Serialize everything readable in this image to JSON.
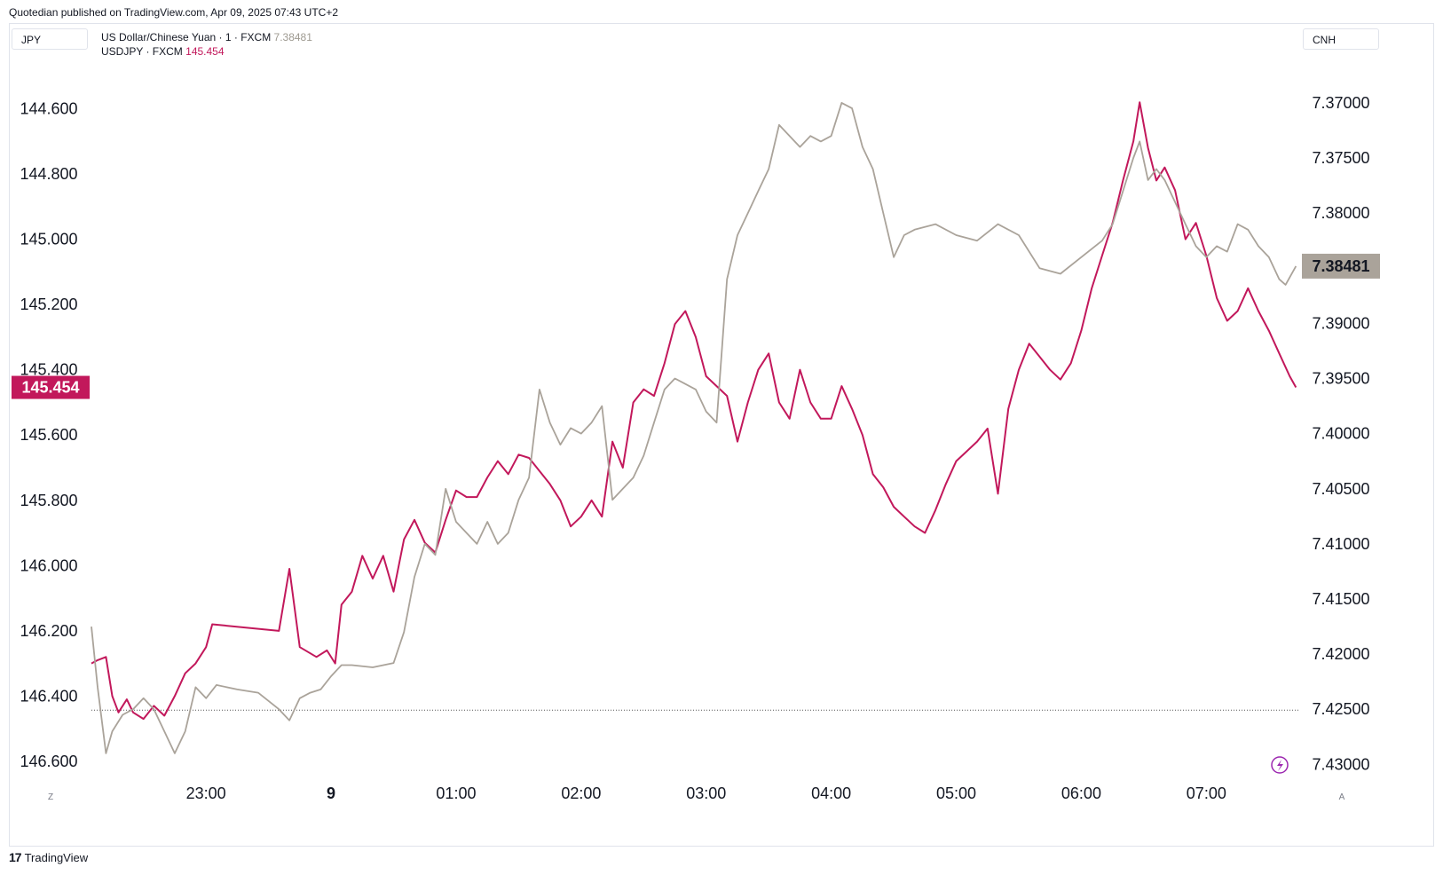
{
  "header": {
    "publisher_line": "Quotedian published on TradingView.com, Apr 09, 2025 07:43 UTC+2"
  },
  "left_unit": "JPY",
  "right_unit": "CNH",
  "legend": {
    "cnh": {
      "name": "US Dollar/Chinese Yuan · 1 · FXCM",
      "value": "7.38481"
    },
    "jpy": {
      "name": "USDJPY · FXCM",
      "value": "145.454"
    }
  },
  "footer": {
    "brand": "TradingView"
  },
  "corner": {
    "left": "Z",
    "right": "A"
  },
  "colors": {
    "jpy": "#c2185b",
    "cnh": "#aaa39a",
    "grid": "#f0f3fa",
    "text": "#131722"
  },
  "chart_data": {
    "type": "line",
    "x_ticks": [
      "23:00",
      "9",
      "01:00",
      "02:00",
      "03:00",
      "04:00",
      "05:00",
      "06:00",
      "07:00"
    ],
    "x_tick_times": [
      "2025-04-08 23:00",
      "2025-04-09 00:00",
      "2025-04-09 01:00",
      "2025-04-09 02:00",
      "2025-04-09 03:00",
      "2025-04-09 04:00",
      "2025-04-09 05:00",
      "2025-04-09 06:00",
      "2025-04-09 07:00"
    ],
    "x_range": [
      "2025-04-08 22:05",
      "2025-04-09 07:45"
    ],
    "left_axis": {
      "label": "JPY",
      "inverted": true,
      "range": [
        144.43,
        146.66
      ],
      "ticks": [
        "144.600",
        "144.800",
        "145.000",
        "145.200",
        "145.400",
        "145.600",
        "145.800",
        "146.000",
        "146.200",
        "146.400",
        "146.600"
      ],
      "tick_values": [
        144.6,
        144.8,
        145.0,
        145.2,
        145.4,
        145.6,
        145.8,
        146.0,
        146.2,
        146.4,
        146.6
      ],
      "last_value": 145.454,
      "last_value_label": "145.454"
    },
    "right_axis": {
      "label": "CNH",
      "inverted": true,
      "range": [
        7.3655,
        7.4315
      ],
      "ticks": [
        "7.37000",
        "7.37500",
        "7.38000",
        "7.38500",
        "7.39000",
        "7.39500",
        "7.40000",
        "7.40500",
        "7.41000",
        "7.41500",
        "7.42000",
        "7.42500",
        "7.43000"
      ],
      "tick_values": [
        7.37,
        7.375,
        7.38,
        7.385,
        7.39,
        7.395,
        7.4,
        7.405,
        7.41,
        7.415,
        7.42,
        7.425,
        7.43
      ],
      "last_value": 7.38481,
      "last_value_label": "7.38481",
      "reference_line": 7.42508
    },
    "series": [
      {
        "name": "USDJPY · FXCM",
        "axis": "left",
        "color": "#c2185b",
        "points": [
          [
            "2025-04-08 22:05",
            146.3
          ],
          [
            "2025-04-08 22:08",
            146.29
          ],
          [
            "2025-04-08 22:12",
            146.28
          ],
          [
            "2025-04-08 22:15",
            146.4
          ],
          [
            "2025-04-08 22:18",
            146.45
          ],
          [
            "2025-04-08 22:22",
            146.41
          ],
          [
            "2025-04-08 22:25",
            146.45
          ],
          [
            "2025-04-08 22:30",
            146.47
          ],
          [
            "2025-04-08 22:35",
            146.43
          ],
          [
            "2025-04-08 22:40",
            146.46
          ],
          [
            "2025-04-08 22:45",
            146.4
          ],
          [
            "2025-04-08 22:50",
            146.33
          ],
          [
            "2025-04-08 22:55",
            146.3
          ],
          [
            "2025-04-08 23:00",
            146.25
          ],
          [
            "2025-04-08 23:03",
            146.18
          ],
          [
            "2025-04-08 23:35",
            146.2
          ],
          [
            "2025-04-08 23:40",
            146.01
          ],
          [
            "2025-04-08 23:45",
            146.25
          ],
          [
            "2025-04-08 23:53",
            146.28
          ],
          [
            "2025-04-08 23:58",
            146.26
          ],
          [
            "2025-04-09 00:02",
            146.3
          ],
          [
            "2025-04-09 00:05",
            146.12
          ],
          [
            "2025-04-09 00:10",
            146.08
          ],
          [
            "2025-04-09 00:15",
            145.97
          ],
          [
            "2025-04-09 00:20",
            146.04
          ],
          [
            "2025-04-09 00:25",
            145.97
          ],
          [
            "2025-04-09 00:30",
            146.08
          ],
          [
            "2025-04-09 00:35",
            145.92
          ],
          [
            "2025-04-09 00:40",
            145.86
          ],
          [
            "2025-04-09 00:45",
            145.93
          ],
          [
            "2025-04-09 00:50",
            145.96
          ],
          [
            "2025-04-09 00:55",
            145.86
          ],
          [
            "2025-04-09 01:00",
            145.77
          ],
          [
            "2025-04-09 01:05",
            145.79
          ],
          [
            "2025-04-09 01:10",
            145.79
          ],
          [
            "2025-04-09 01:15",
            145.73
          ],
          [
            "2025-04-09 01:20",
            145.68
          ],
          [
            "2025-04-09 01:25",
            145.72
          ],
          [
            "2025-04-09 01:30",
            145.66
          ],
          [
            "2025-04-09 01:35",
            145.67
          ],
          [
            "2025-04-09 01:40",
            145.71
          ],
          [
            "2025-04-09 01:45",
            145.75
          ],
          [
            "2025-04-09 01:50",
            145.8
          ],
          [
            "2025-04-09 01:55",
            145.88
          ],
          [
            "2025-04-09 02:00",
            145.85
          ],
          [
            "2025-04-09 02:05",
            145.8
          ],
          [
            "2025-04-09 02:10",
            145.85
          ],
          [
            "2025-04-09 02:15",
            145.62
          ],
          [
            "2025-04-09 02:20",
            145.7
          ],
          [
            "2025-04-09 02:25",
            145.5
          ],
          [
            "2025-04-09 02:30",
            145.46
          ],
          [
            "2025-04-09 02:35",
            145.48
          ],
          [
            "2025-04-09 02:40",
            145.38
          ],
          [
            "2025-04-09 02:45",
            145.26
          ],
          [
            "2025-04-09 02:50",
            145.22
          ],
          [
            "2025-04-09 02:55",
            145.3
          ],
          [
            "2025-04-09 03:00",
            145.42
          ],
          [
            "2025-04-09 03:05",
            145.45
          ],
          [
            "2025-04-09 03:10",
            145.48
          ],
          [
            "2025-04-09 03:15",
            145.62
          ],
          [
            "2025-04-09 03:20",
            145.5
          ],
          [
            "2025-04-09 03:25",
            145.4
          ],
          [
            "2025-04-09 03:30",
            145.35
          ],
          [
            "2025-04-09 03:35",
            145.5
          ],
          [
            "2025-04-09 03:40",
            145.55
          ],
          [
            "2025-04-09 03:45",
            145.4
          ],
          [
            "2025-04-09 03:50",
            145.5
          ],
          [
            "2025-04-09 03:55",
            145.55
          ],
          [
            "2025-04-09 04:00",
            145.55
          ],
          [
            "2025-04-09 04:05",
            145.45
          ],
          [
            "2025-04-09 04:10",
            145.52
          ],
          [
            "2025-04-09 04:15",
            145.6
          ],
          [
            "2025-04-09 04:20",
            145.72
          ],
          [
            "2025-04-09 04:25",
            145.76
          ],
          [
            "2025-04-09 04:30",
            145.82
          ],
          [
            "2025-04-09 04:35",
            145.85
          ],
          [
            "2025-04-09 04:40",
            145.88
          ],
          [
            "2025-04-09 04:45",
            145.9
          ],
          [
            "2025-04-09 04:50",
            145.83
          ],
          [
            "2025-04-09 04:55",
            145.75
          ],
          [
            "2025-04-09 05:00",
            145.68
          ],
          [
            "2025-04-09 05:05",
            145.65
          ],
          [
            "2025-04-09 05:10",
            145.62
          ],
          [
            "2025-04-09 05:15",
            145.58
          ],
          [
            "2025-04-09 05:20",
            145.78
          ],
          [
            "2025-04-09 05:25",
            145.52
          ],
          [
            "2025-04-09 05:30",
            145.4
          ],
          [
            "2025-04-09 05:35",
            145.32
          ],
          [
            "2025-04-09 05:40",
            145.36
          ],
          [
            "2025-04-09 05:45",
            145.4
          ],
          [
            "2025-04-09 05:50",
            145.43
          ],
          [
            "2025-04-09 05:55",
            145.38
          ],
          [
            "2025-04-09 06:00",
            145.28
          ],
          [
            "2025-04-09 06:05",
            145.15
          ],
          [
            "2025-04-09 06:10",
            145.05
          ],
          [
            "2025-04-09 06:15",
            144.95
          ],
          [
            "2025-04-09 06:20",
            144.82
          ],
          [
            "2025-04-09 06:25",
            144.7
          ],
          [
            "2025-04-09 06:28",
            144.58
          ],
          [
            "2025-04-09 06:32",
            144.72
          ],
          [
            "2025-04-09 06:36",
            144.82
          ],
          [
            "2025-04-09 06:40",
            144.78
          ],
          [
            "2025-04-09 06:45",
            144.85
          ],
          [
            "2025-04-09 06:50",
            145.0
          ],
          [
            "2025-04-09 06:55",
            144.95
          ],
          [
            "2025-04-09 07:00",
            145.05
          ],
          [
            "2025-04-09 07:05",
            145.18
          ],
          [
            "2025-04-09 07:10",
            145.25
          ],
          [
            "2025-04-09 07:15",
            145.22
          ],
          [
            "2025-04-09 07:20",
            145.15
          ],
          [
            "2025-04-09 07:25",
            145.22
          ],
          [
            "2025-04-09 07:30",
            145.28
          ],
          [
            "2025-04-09 07:35",
            145.35
          ],
          [
            "2025-04-09 07:40",
            145.42
          ],
          [
            "2025-04-09 07:43",
            145.454
          ]
        ]
      },
      {
        "name": "US Dollar/Chinese Yuan · 1 · FXCM",
        "axis": "right",
        "color": "#aaa39a",
        "points": [
          [
            "2025-04-08 22:05",
            7.4175
          ],
          [
            "2025-04-08 22:08",
            7.423
          ],
          [
            "2025-04-08 22:12",
            7.429
          ],
          [
            "2025-04-08 22:15",
            7.427
          ],
          [
            "2025-04-08 22:20",
            7.4255
          ],
          [
            "2025-04-08 22:25",
            7.425
          ],
          [
            "2025-04-08 22:30",
            7.424
          ],
          [
            "2025-04-08 22:35",
            7.425
          ],
          [
            "2025-04-08 22:40",
            7.427
          ],
          [
            "2025-04-08 22:45",
            7.429
          ],
          [
            "2025-04-08 22:50",
            7.427
          ],
          [
            "2025-04-08 22:55",
            7.423
          ],
          [
            "2025-04-08 23:00",
            7.424
          ],
          [
            "2025-04-08 23:05",
            7.4228
          ],
          [
            "2025-04-08 23:15",
            7.4232
          ],
          [
            "2025-04-08 23:25",
            7.4235
          ],
          [
            "2025-04-08 23:35",
            7.425
          ],
          [
            "2025-04-08 23:40",
            7.426
          ],
          [
            "2025-04-08 23:45",
            7.424
          ],
          [
            "2025-04-08 23:50",
            7.4235
          ],
          [
            "2025-04-08 23:55",
            7.4232
          ],
          [
            "2025-04-09 00:00",
            7.422
          ],
          [
            "2025-04-09 00:05",
            7.421
          ],
          [
            "2025-04-09 00:10",
            7.421
          ],
          [
            "2025-04-09 00:20",
            7.4212
          ],
          [
            "2025-04-09 00:30",
            7.4208
          ],
          [
            "2025-04-09 00:35",
            7.418
          ],
          [
            "2025-04-09 00:40",
            7.413
          ],
          [
            "2025-04-09 00:45",
            7.41
          ],
          [
            "2025-04-09 00:50",
            7.411
          ],
          [
            "2025-04-09 00:55",
            7.405
          ],
          [
            "2025-04-09 01:00",
            7.408
          ],
          [
            "2025-04-09 01:05",
            7.409
          ],
          [
            "2025-04-09 01:10",
            7.41
          ],
          [
            "2025-04-09 01:15",
            7.408
          ],
          [
            "2025-04-09 01:20",
            7.41
          ],
          [
            "2025-04-09 01:25",
            7.409
          ],
          [
            "2025-04-09 01:30",
            7.406
          ],
          [
            "2025-04-09 01:35",
            7.404
          ],
          [
            "2025-04-09 01:40",
            7.396
          ],
          [
            "2025-04-09 01:45",
            7.399
          ],
          [
            "2025-04-09 01:50",
            7.401
          ],
          [
            "2025-04-09 01:55",
            7.3995
          ],
          [
            "2025-04-09 02:00",
            7.4
          ],
          [
            "2025-04-09 02:05",
            7.399
          ],
          [
            "2025-04-09 02:10",
            7.3975
          ],
          [
            "2025-04-09 02:15",
            7.406
          ],
          [
            "2025-04-09 02:20",
            7.405
          ],
          [
            "2025-04-09 02:25",
            7.404
          ],
          [
            "2025-04-09 02:30",
            7.402
          ],
          [
            "2025-04-09 02:35",
            7.399
          ],
          [
            "2025-04-09 02:40",
            7.396
          ],
          [
            "2025-04-09 02:45",
            7.395
          ],
          [
            "2025-04-09 02:50",
            7.3955
          ],
          [
            "2025-04-09 02:55",
            7.396
          ],
          [
            "2025-04-09 03:00",
            7.398
          ],
          [
            "2025-04-09 03:05",
            7.399
          ],
          [
            "2025-04-09 03:10",
            7.386
          ],
          [
            "2025-04-09 03:15",
            7.382
          ],
          [
            "2025-04-09 03:20",
            7.38
          ],
          [
            "2025-04-09 03:25",
            7.378
          ],
          [
            "2025-04-09 03:30",
            7.376
          ],
          [
            "2025-04-09 03:35",
            7.372
          ],
          [
            "2025-04-09 03:40",
            7.373
          ],
          [
            "2025-04-09 03:45",
            7.374
          ],
          [
            "2025-04-09 03:50",
            7.373
          ],
          [
            "2025-04-09 03:55",
            7.3735
          ],
          [
            "2025-04-09 04:00",
            7.373
          ],
          [
            "2025-04-09 04:05",
            7.37
          ],
          [
            "2025-04-09 04:10",
            7.3705
          ],
          [
            "2025-04-09 04:15",
            7.374
          ],
          [
            "2025-04-09 04:20",
            7.376
          ],
          [
            "2025-04-09 04:25",
            7.38
          ],
          [
            "2025-04-09 04:30",
            7.384
          ],
          [
            "2025-04-09 04:35",
            7.382
          ],
          [
            "2025-04-09 04:40",
            7.3815
          ],
          [
            "2025-04-09 04:50",
            7.381
          ],
          [
            "2025-04-09 05:00",
            7.382
          ],
          [
            "2025-04-09 05:10",
            7.3825
          ],
          [
            "2025-04-09 05:20",
            7.381
          ],
          [
            "2025-04-09 05:30",
            7.382
          ],
          [
            "2025-04-09 05:40",
            7.385
          ],
          [
            "2025-04-09 05:50",
            7.3855
          ],
          [
            "2025-04-09 06:00",
            7.384
          ],
          [
            "2025-04-09 06:10",
            7.3825
          ],
          [
            "2025-04-09 06:15",
            7.381
          ],
          [
            "2025-04-09 06:20",
            7.378
          ],
          [
            "2025-04-09 06:25",
            7.375
          ],
          [
            "2025-04-09 06:28",
            7.3735
          ],
          [
            "2025-04-09 06:32",
            7.377
          ],
          [
            "2025-04-09 06:36",
            7.376
          ],
          [
            "2025-04-09 06:40",
            7.377
          ],
          [
            "2025-04-09 06:45",
            7.379
          ],
          [
            "2025-04-09 06:50",
            7.381
          ],
          [
            "2025-04-09 06:55",
            7.383
          ],
          [
            "2025-04-09 07:00",
            7.384
          ],
          [
            "2025-04-09 07:05",
            7.383
          ],
          [
            "2025-04-09 07:10",
            7.3835
          ],
          [
            "2025-04-09 07:15",
            7.381
          ],
          [
            "2025-04-09 07:20",
            7.3815
          ],
          [
            "2025-04-09 07:25",
            7.383
          ],
          [
            "2025-04-09 07:30",
            7.384
          ],
          [
            "2025-04-09 07:35",
            7.386
          ],
          [
            "2025-04-09 07:38",
            7.3865
          ],
          [
            "2025-04-09 07:43",
            7.38481
          ]
        ]
      }
    ]
  }
}
